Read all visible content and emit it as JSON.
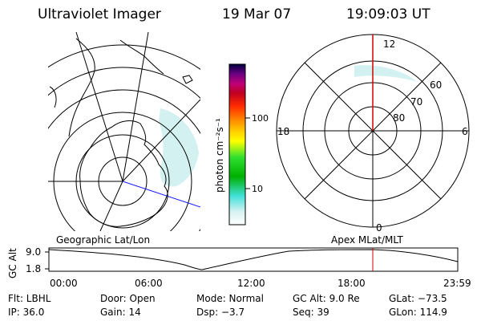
{
  "header": {
    "instrument": "Ultraviolet Imager",
    "date": "19 Mar 07",
    "time": "19:09:03 UT"
  },
  "colorbar": {
    "unit_label": "photon cm⁻²s⁻¹",
    "tick_labels": [
      "100",
      "10"
    ]
  },
  "left_map": {
    "caption": "Geographic Lat/Lon"
  },
  "right_map": {
    "caption": "Apex  MLat/MLT",
    "mlt_labels": {
      "top": "12",
      "left": "18",
      "right": "6",
      "bottom": "0"
    },
    "lat_labels": [
      "60",
      "70",
      "80"
    ]
  },
  "altitude_strip": {
    "ylabel": "GC Alt",
    "y_ticks": [
      "9.0",
      "1.8"
    ],
    "time_ticks": [
      "00:00",
      "06:00",
      "12:00",
      "18:00",
      "23:59"
    ],
    "marker_time": "19:09"
  },
  "info_grid": {
    "rows": [
      [
        "Flt: LBHL",
        "Door: Open",
        "Mode: Normal",
        "GC Alt: 9.0 Re",
        "GLat: −73.5"
      ],
      [
        "IP: 36.0",
        "Gain: 14",
        "Dsp:    −3.7",
        "Seq: 39",
        "GLon: 114.9"
      ]
    ]
  },
  "colors": {
    "frame": "#000000",
    "marker": "#d40000",
    "track": "#1a1aff",
    "emission": "#c8ecee"
  }
}
